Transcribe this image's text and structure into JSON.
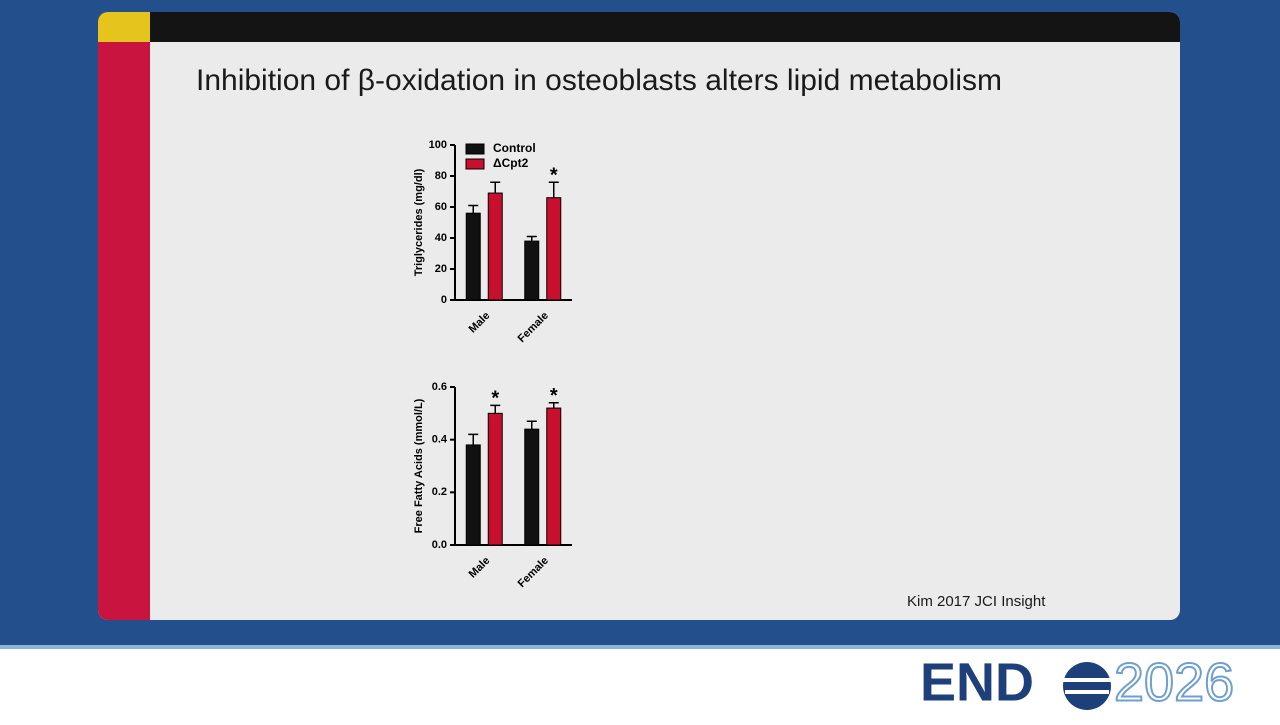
{
  "slide": {
    "title": "Inhibition of β-oxidation in osteoblasts alters lipid metabolism",
    "citation": "Kim 2017 JCI Insight",
    "logo_left": "END",
    "logo_right": "2026"
  },
  "chart_data": [
    {
      "type": "bar",
      "ylabel": "Triglycerides (mg/dl)",
      "categories": [
        "Male",
        "Female"
      ],
      "series": [
        {
          "name": "Control",
          "color": "#111111",
          "values": [
            56,
            38
          ],
          "errors": [
            5,
            3
          ],
          "markers": [
            null,
            null
          ]
        },
        {
          "name": "ΔCpt2",
          "color": "#c8102e",
          "values": [
            69,
            66
          ],
          "errors": [
            7,
            10
          ],
          "markers": [
            null,
            "*"
          ]
        }
      ],
      "ylim": [
        0,
        100
      ],
      "yticks": [
        0,
        20,
        40,
        60,
        80,
        100
      ],
      "legend": "upper left"
    },
    {
      "type": "bar",
      "ylabel": "Free Fatty Acids (mmol/L)",
      "categories": [
        "Male",
        "Female"
      ],
      "series": [
        {
          "color": "#111111",
          "values": [
            0.38,
            0.44
          ],
          "errors": [
            0.04,
            0.03
          ],
          "markers": [
            null,
            null
          ]
        },
        {
          "color": "#c8102e",
          "values": [
            0.5,
            0.52
          ],
          "errors": [
            0.03,
            0.02
          ],
          "markers": [
            "*",
            "*"
          ]
        }
      ],
      "ylim": [
        0,
        0.6
      ],
      "yticks": [
        {
          "value": 0,
          "label": "0.0"
        },
        0.2,
        0.4,
        0.6
      ]
    }
  ]
}
